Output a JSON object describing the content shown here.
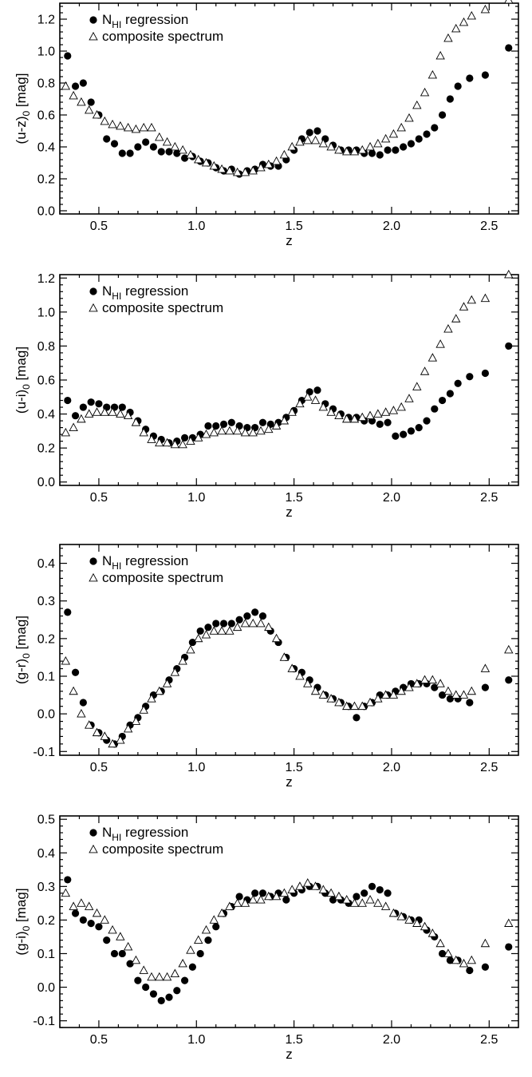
{
  "chart_data": [
    {
      "type": "scatter",
      "xlabel": "z",
      "ylabel_base": "(u-z)",
      "ylabel_sub": "0",
      "ylabel_unit": " [mag]",
      "xlim": [
        0.3,
        2.65
      ],
      "ylim": [
        -0.02,
        1.3
      ],
      "xticks": [
        "0.5",
        "1.0",
        "1.5",
        "2.0",
        "2.5"
      ],
      "yticks": [
        "0.0",
        "0.2",
        "0.4",
        "0.6",
        "0.8",
        "1.0",
        "1.2"
      ],
      "legend": {
        "position": "top-left"
      },
      "series": [
        {
          "name_main": "N",
          "name_sub": "HI",
          "name_rest": " regression",
          "marker": "dot",
          "x": [
            0.34,
            0.38,
            0.42,
            0.46,
            0.5,
            0.54,
            0.58,
            0.62,
            0.66,
            0.7,
            0.74,
            0.78,
            0.82,
            0.86,
            0.9,
            0.94,
            0.98,
            1.02,
            1.06,
            1.1,
            1.14,
            1.18,
            1.22,
            1.26,
            1.3,
            1.34,
            1.38,
            1.42,
            1.46,
            1.5,
            1.54,
            1.58,
            1.62,
            1.66,
            1.7,
            1.74,
            1.78,
            1.82,
            1.86,
            1.9,
            1.94,
            1.98,
            2.02,
            2.06,
            2.1,
            2.14,
            2.18,
            2.22,
            2.26,
            2.3,
            2.34,
            2.4,
            2.48,
            2.6
          ],
          "y": [
            0.97,
            0.78,
            0.8,
            0.68,
            0.6,
            0.45,
            0.42,
            0.36,
            0.36,
            0.4,
            0.43,
            0.4,
            0.37,
            0.37,
            0.36,
            0.33,
            0.34,
            0.31,
            0.3,
            0.27,
            0.25,
            0.26,
            0.23,
            0.25,
            0.26,
            0.29,
            0.28,
            0.28,
            0.32,
            0.38,
            0.45,
            0.49,
            0.5,
            0.45,
            0.41,
            0.38,
            0.38,
            0.38,
            0.36,
            0.36,
            0.35,
            0.38,
            0.38,
            0.4,
            0.42,
            0.45,
            0.48,
            0.52,
            0.6,
            0.7,
            0.78,
            0.83,
            0.85,
            1.02
          ]
        },
        {
          "name": "composite spectrum",
          "marker": "triangle",
          "x": [
            0.33,
            0.37,
            0.41,
            0.45,
            0.49,
            0.53,
            0.57,
            0.61,
            0.65,
            0.69,
            0.73,
            0.77,
            0.81,
            0.85,
            0.89,
            0.93,
            0.97,
            1.01,
            1.05,
            1.09,
            1.13,
            1.17,
            1.21,
            1.25,
            1.29,
            1.33,
            1.37,
            1.41,
            1.45,
            1.49,
            1.53,
            1.57,
            1.61,
            1.65,
            1.69,
            1.73,
            1.77,
            1.81,
            1.85,
            1.89,
            1.93,
            1.97,
            2.01,
            2.05,
            2.09,
            2.13,
            2.17,
            2.21,
            2.25,
            2.29,
            2.33,
            2.37,
            2.41,
            2.48,
            2.6
          ],
          "y": [
            0.78,
            0.72,
            0.68,
            0.63,
            0.6,
            0.56,
            0.54,
            0.53,
            0.52,
            0.51,
            0.52,
            0.52,
            0.46,
            0.43,
            0.4,
            0.38,
            0.35,
            0.32,
            0.3,
            0.28,
            0.26,
            0.25,
            0.24,
            0.24,
            0.25,
            0.27,
            0.29,
            0.31,
            0.35,
            0.4,
            0.43,
            0.44,
            0.44,
            0.42,
            0.4,
            0.38,
            0.37,
            0.37,
            0.38,
            0.4,
            0.42,
            0.45,
            0.48,
            0.52,
            0.58,
            0.66,
            0.74,
            0.85,
            0.97,
            1.08,
            1.14,
            1.18,
            1.22,
            1.26,
            1.32
          ]
        }
      ]
    },
    {
      "type": "scatter",
      "xlabel": "z",
      "ylabel_base": "(u-i)",
      "ylabel_sub": "0",
      "ylabel_unit": " [mag]",
      "xlim": [
        0.3,
        2.65
      ],
      "ylim": [
        -0.02,
        1.22
      ],
      "xticks": [
        "0.5",
        "1.0",
        "1.5",
        "2.0",
        "2.5"
      ],
      "yticks": [
        "0.0",
        "0.2",
        "0.4",
        "0.6",
        "0.8",
        "1.0",
        "1.2"
      ],
      "legend": {
        "position": "top-left"
      },
      "series": [
        {
          "name_main": "N",
          "name_sub": "HI",
          "name_rest": " regression",
          "marker": "dot",
          "x": [
            0.34,
            0.38,
            0.42,
            0.46,
            0.5,
            0.54,
            0.58,
            0.62,
            0.66,
            0.7,
            0.74,
            0.78,
            0.82,
            0.86,
            0.9,
            0.94,
            0.98,
            1.02,
            1.06,
            1.1,
            1.14,
            1.18,
            1.22,
            1.26,
            1.3,
            1.34,
            1.38,
            1.42,
            1.46,
            1.5,
            1.54,
            1.58,
            1.62,
            1.66,
            1.7,
            1.74,
            1.78,
            1.82,
            1.86,
            1.9,
            1.94,
            1.98,
            2.02,
            2.06,
            2.1,
            2.14,
            2.18,
            2.22,
            2.26,
            2.3,
            2.34,
            2.4,
            2.48,
            2.6
          ],
          "y": [
            0.48,
            0.39,
            0.44,
            0.47,
            0.46,
            0.44,
            0.44,
            0.44,
            0.41,
            0.36,
            0.31,
            0.27,
            0.25,
            0.23,
            0.24,
            0.26,
            0.26,
            0.28,
            0.33,
            0.33,
            0.34,
            0.35,
            0.33,
            0.32,
            0.32,
            0.35,
            0.34,
            0.35,
            0.38,
            0.42,
            0.48,
            0.53,
            0.54,
            0.46,
            0.43,
            0.4,
            0.38,
            0.38,
            0.36,
            0.36,
            0.34,
            0.35,
            0.27,
            0.28,
            0.3,
            0.32,
            0.36,
            0.43,
            0.48,
            0.52,
            0.58,
            0.62,
            0.64,
            0.8
          ]
        },
        {
          "name": "composite spectrum",
          "marker": "triangle",
          "x": [
            0.33,
            0.37,
            0.41,
            0.45,
            0.49,
            0.53,
            0.57,
            0.61,
            0.65,
            0.69,
            0.73,
            0.77,
            0.81,
            0.85,
            0.89,
            0.93,
            0.97,
            1.01,
            1.05,
            1.09,
            1.13,
            1.17,
            1.21,
            1.25,
            1.29,
            1.33,
            1.37,
            1.41,
            1.45,
            1.49,
            1.53,
            1.57,
            1.61,
            1.65,
            1.69,
            1.73,
            1.77,
            1.81,
            1.85,
            1.89,
            1.93,
            1.97,
            2.01,
            2.05,
            2.09,
            2.13,
            2.17,
            2.21,
            2.25,
            2.29,
            2.33,
            2.37,
            2.41,
            2.48,
            2.6
          ],
          "y": [
            0.29,
            0.32,
            0.37,
            0.4,
            0.41,
            0.41,
            0.41,
            0.4,
            0.39,
            0.35,
            0.29,
            0.25,
            0.23,
            0.23,
            0.22,
            0.22,
            0.24,
            0.26,
            0.28,
            0.29,
            0.3,
            0.3,
            0.3,
            0.29,
            0.29,
            0.3,
            0.31,
            0.33,
            0.36,
            0.41,
            0.46,
            0.5,
            0.48,
            0.44,
            0.41,
            0.39,
            0.37,
            0.37,
            0.38,
            0.39,
            0.4,
            0.41,
            0.42,
            0.44,
            0.49,
            0.56,
            0.65,
            0.73,
            0.81,
            0.9,
            0.96,
            1.03,
            1.07,
            1.08,
            1.22
          ]
        }
      ]
    },
    {
      "type": "scatter",
      "xlabel": "z",
      "ylabel_base": "(g-r)",
      "ylabel_sub": "0",
      "ylabel_unit": " [mag]",
      "xlim": [
        0.3,
        2.65
      ],
      "ylim": [
        -0.11,
        0.45
      ],
      "xticks": [
        "0.5",
        "1.0",
        "1.5",
        "2.0",
        "2.5"
      ],
      "yticks": [
        "-0.1",
        "0.0",
        "0.1",
        "0.2",
        "0.3",
        "0.4"
      ],
      "legend": {
        "position": "top-left"
      },
      "series": [
        {
          "name_main": "N",
          "name_sub": "HI",
          "name_rest": " regression",
          "marker": "dot",
          "x": [
            0.34,
            0.38,
            0.42,
            0.46,
            0.5,
            0.54,
            0.58,
            0.62,
            0.66,
            0.7,
            0.74,
            0.78,
            0.82,
            0.86,
            0.9,
            0.94,
            0.98,
            1.02,
            1.06,
            1.1,
            1.14,
            1.18,
            1.22,
            1.26,
            1.3,
            1.34,
            1.38,
            1.42,
            1.46,
            1.5,
            1.54,
            1.58,
            1.62,
            1.66,
            1.7,
            1.74,
            1.78,
            1.82,
            1.86,
            1.9,
            1.94,
            1.98,
            2.02,
            2.06,
            2.1,
            2.14,
            2.18,
            2.22,
            2.26,
            2.3,
            2.34,
            2.4,
            2.48,
            2.6
          ],
          "y": [
            0.27,
            0.11,
            0.03,
            -0.03,
            -0.05,
            -0.07,
            -0.08,
            -0.06,
            -0.03,
            -0.01,
            0.02,
            0.05,
            0.06,
            0.09,
            0.12,
            0.15,
            0.19,
            0.22,
            0.23,
            0.24,
            0.24,
            0.24,
            0.25,
            0.26,
            0.27,
            0.26,
            0.22,
            0.19,
            0.15,
            0.12,
            0.11,
            0.09,
            0.07,
            0.05,
            0.04,
            0.03,
            0.02,
            -0.01,
            0.02,
            0.03,
            0.05,
            0.05,
            0.06,
            0.07,
            0.08,
            0.08,
            0.08,
            0.07,
            0.05,
            0.04,
            0.04,
            0.03,
            0.07,
            0.09
          ]
        },
        {
          "name": "composite spectrum",
          "marker": "triangle",
          "x": [
            0.33,
            0.37,
            0.41,
            0.45,
            0.49,
            0.53,
            0.57,
            0.61,
            0.65,
            0.69,
            0.73,
            0.77,
            0.81,
            0.85,
            0.89,
            0.93,
            0.97,
            1.01,
            1.05,
            1.09,
            1.13,
            1.17,
            1.21,
            1.25,
            1.29,
            1.33,
            1.37,
            1.41,
            1.45,
            1.49,
            1.53,
            1.57,
            1.61,
            1.65,
            1.69,
            1.73,
            1.77,
            1.81,
            1.85,
            1.89,
            1.93,
            1.97,
            2.01,
            2.05,
            2.09,
            2.13,
            2.17,
            2.21,
            2.25,
            2.29,
            2.33,
            2.37,
            2.41,
            2.48,
            2.6
          ],
          "y": [
            0.14,
            0.06,
            0.0,
            -0.03,
            -0.05,
            -0.06,
            -0.08,
            -0.07,
            -0.04,
            -0.02,
            0.01,
            0.04,
            0.06,
            0.08,
            0.11,
            0.14,
            0.17,
            0.2,
            0.21,
            0.22,
            0.22,
            0.22,
            0.23,
            0.24,
            0.24,
            0.24,
            0.23,
            0.2,
            0.15,
            0.12,
            0.1,
            0.08,
            0.06,
            0.05,
            0.04,
            0.03,
            0.02,
            0.02,
            0.02,
            0.03,
            0.04,
            0.05,
            0.05,
            0.06,
            0.07,
            0.08,
            0.09,
            0.09,
            0.08,
            0.06,
            0.05,
            0.05,
            0.06,
            0.12,
            0.17
          ]
        }
      ]
    },
    {
      "type": "scatter",
      "xlabel": "z",
      "ylabel_base": "(g-i)",
      "ylabel_sub": "0",
      "ylabel_unit": " [mag]",
      "xlim": [
        0.3,
        2.65
      ],
      "ylim": [
        -0.12,
        0.51
      ],
      "xticks": [
        "0.5",
        "1.0",
        "1.5",
        "2.0",
        "2.5"
      ],
      "yticks": [
        "-0.1",
        "0.0",
        "0.1",
        "0.2",
        "0.3",
        "0.4",
        "0.5"
      ],
      "legend": {
        "position": "top-left"
      },
      "series": [
        {
          "name_main": "N",
          "name_sub": "HI",
          "name_rest": " regression",
          "marker": "dot",
          "x": [
            0.34,
            0.38,
            0.42,
            0.46,
            0.5,
            0.54,
            0.58,
            0.62,
            0.66,
            0.7,
            0.74,
            0.78,
            0.82,
            0.86,
            0.9,
            0.94,
            0.98,
            1.02,
            1.06,
            1.1,
            1.14,
            1.18,
            1.22,
            1.26,
            1.3,
            1.34,
            1.38,
            1.42,
            1.46,
            1.5,
            1.54,
            1.58,
            1.62,
            1.66,
            1.7,
            1.74,
            1.78,
            1.82,
            1.86,
            1.9,
            1.94,
            1.98,
            2.02,
            2.06,
            2.1,
            2.14,
            2.18,
            2.22,
            2.26,
            2.3,
            2.34,
            2.4,
            2.48,
            2.6
          ],
          "y": [
            0.32,
            0.22,
            0.2,
            0.19,
            0.18,
            0.14,
            0.1,
            0.1,
            0.07,
            0.02,
            0.0,
            -0.02,
            -0.04,
            -0.03,
            -0.01,
            0.02,
            0.06,
            0.1,
            0.14,
            0.18,
            0.22,
            0.24,
            0.27,
            0.26,
            0.28,
            0.28,
            0.27,
            0.28,
            0.26,
            0.28,
            0.29,
            0.3,
            0.3,
            0.28,
            0.26,
            0.26,
            0.25,
            0.27,
            0.28,
            0.3,
            0.29,
            0.28,
            0.22,
            0.21,
            0.2,
            0.2,
            0.17,
            0.15,
            0.1,
            0.08,
            0.08,
            0.05,
            0.06,
            0.12
          ]
        },
        {
          "name": "composite spectrum",
          "marker": "triangle",
          "x": [
            0.33,
            0.37,
            0.41,
            0.45,
            0.49,
            0.53,
            0.57,
            0.61,
            0.65,
            0.69,
            0.73,
            0.77,
            0.81,
            0.85,
            0.89,
            0.93,
            0.97,
            1.01,
            1.05,
            1.09,
            1.13,
            1.17,
            1.21,
            1.25,
            1.29,
            1.33,
            1.37,
            1.41,
            1.45,
            1.49,
            1.53,
            1.57,
            1.61,
            1.65,
            1.69,
            1.73,
            1.77,
            1.81,
            1.85,
            1.89,
            1.93,
            1.97,
            2.01,
            2.05,
            2.09,
            2.13,
            2.17,
            2.21,
            2.25,
            2.29,
            2.33,
            2.37,
            2.41,
            2.48,
            2.6
          ],
          "y": [
            0.28,
            0.24,
            0.25,
            0.24,
            0.22,
            0.2,
            0.17,
            0.15,
            0.12,
            0.08,
            0.05,
            0.03,
            0.03,
            0.03,
            0.04,
            0.07,
            0.11,
            0.14,
            0.17,
            0.2,
            0.22,
            0.24,
            0.25,
            0.25,
            0.26,
            0.26,
            0.27,
            0.27,
            0.28,
            0.29,
            0.3,
            0.31,
            0.3,
            0.29,
            0.28,
            0.27,
            0.26,
            0.25,
            0.25,
            0.26,
            0.25,
            0.24,
            0.22,
            0.21,
            0.2,
            0.19,
            0.18,
            0.16,
            0.13,
            0.1,
            0.08,
            0.07,
            0.08,
            0.13,
            0.19
          ]
        }
      ]
    }
  ]
}
